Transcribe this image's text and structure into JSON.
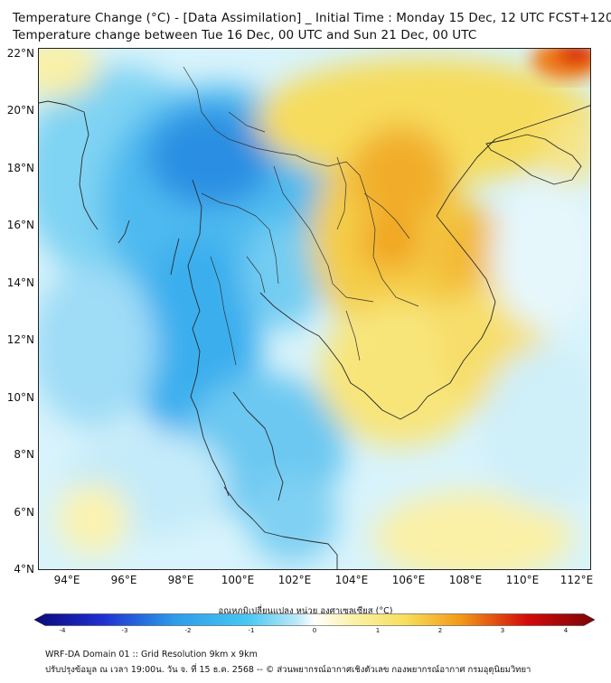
{
  "title": {
    "line1": "Temperature Change (°C) - [Data Assimilation] _ Initial Time : Monday 15 Dec, 12 UTC FCST+120",
    "line2": "Temperature change between Tue 16 Dec, 00 UTC and Sun 21 Dec, 00 UTC"
  },
  "axes": {
    "lat_labels": [
      "22°N",
      "20°N",
      "18°N",
      "16°N",
      "14°N",
      "12°N",
      "10°N",
      "8°N",
      "6°N",
      "4°N"
    ],
    "lon_labels": [
      "94°E",
      "96°E",
      "98°E",
      "100°E",
      "102°E",
      "104°E",
      "106°E",
      "108°E",
      "110°E",
      "112°E"
    ]
  },
  "colorbar": {
    "label": "อุณหภูมิเปลี่ยนแปลง หน่วย องศาเซลเซียส (°C)",
    "ticks": [
      "-4",
      "-3",
      "-2",
      "-1",
      "0",
      "1",
      "2",
      "3",
      "4"
    ],
    "min": -4,
    "max": 4
  },
  "footer": {
    "line1": "WRF-DA Domain 01 :: Grid Resolution 9km x 9km",
    "line2": "ปรับปรุงข้อมูล ณ เวลา 19:00น. วัน จ. ที่ 15 ธ.ค. 2568 -- © ส่วนพยากรณ์อากาศเชิงตัวเลข กองพยากรณ์อากาศ กรมอุตุนิยมวิทยา"
  },
  "colors": {
    "cold_max": "#0a0a7a",
    "cool": "#2d9bea",
    "light_cool": "#bfe9f8",
    "neutral": "#ffffff",
    "warm": "#f7df5e",
    "hot": "#f29a17",
    "hot_max": "#d30a0a"
  }
}
